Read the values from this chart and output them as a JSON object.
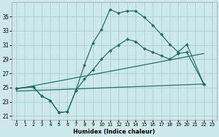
{
  "xlabel": "Humidex (Indice chaleur)",
  "background_color": "#cce8e8",
  "line_color": "#1a6e60",
  "grid_color": "#a8cece",
  "xlim": [
    -0.5,
    23.5
  ],
  "ylim": [
    20.5,
    37.0
  ],
  "xticks": [
    0,
    1,
    2,
    3,
    4,
    5,
    6,
    7,
    8,
    9,
    10,
    11,
    12,
    13,
    14,
    15,
    16,
    17,
    18,
    19,
    20,
    21,
    22,
    23
  ],
  "yticks": [
    21,
    23,
    25,
    27,
    29,
    31,
    33,
    35
  ],
  "curve1_x": [
    0,
    2,
    3,
    4,
    5,
    6,
    7,
    8,
    9,
    10,
    11,
    12,
    13,
    14,
    15,
    16,
    17,
    18,
    19,
    20,
    22
  ],
  "curve1_y": [
    24.9,
    25.1,
    23.8,
    23.2,
    21.5,
    21.6,
    24.6,
    28.2,
    31.3,
    33.2,
    36.0,
    35.5,
    35.8,
    35.8,
    34.9,
    33.8,
    32.5,
    31.1,
    30.0,
    31.1,
    25.5
  ],
  "curve2_x": [
    0,
    2,
    3,
    4,
    5,
    6,
    7,
    8,
    9,
    10,
    11,
    12,
    13,
    14,
    15,
    16,
    17,
    18,
    19,
    20,
    22
  ],
  "curve2_y": [
    24.9,
    25.1,
    23.8,
    23.2,
    21.5,
    21.6,
    24.6,
    26.2,
    27.5,
    29.0,
    30.2,
    31.0,
    31.8,
    31.5,
    30.5,
    30.0,
    29.5,
    29.0,
    29.8,
    30.0,
    25.5
  ],
  "line3_x": [
    0,
    22
  ],
  "line3_y": [
    24.8,
    29.8
  ],
  "line4_x": [
    0,
    22
  ],
  "line4_y": [
    24.5,
    25.5
  ]
}
